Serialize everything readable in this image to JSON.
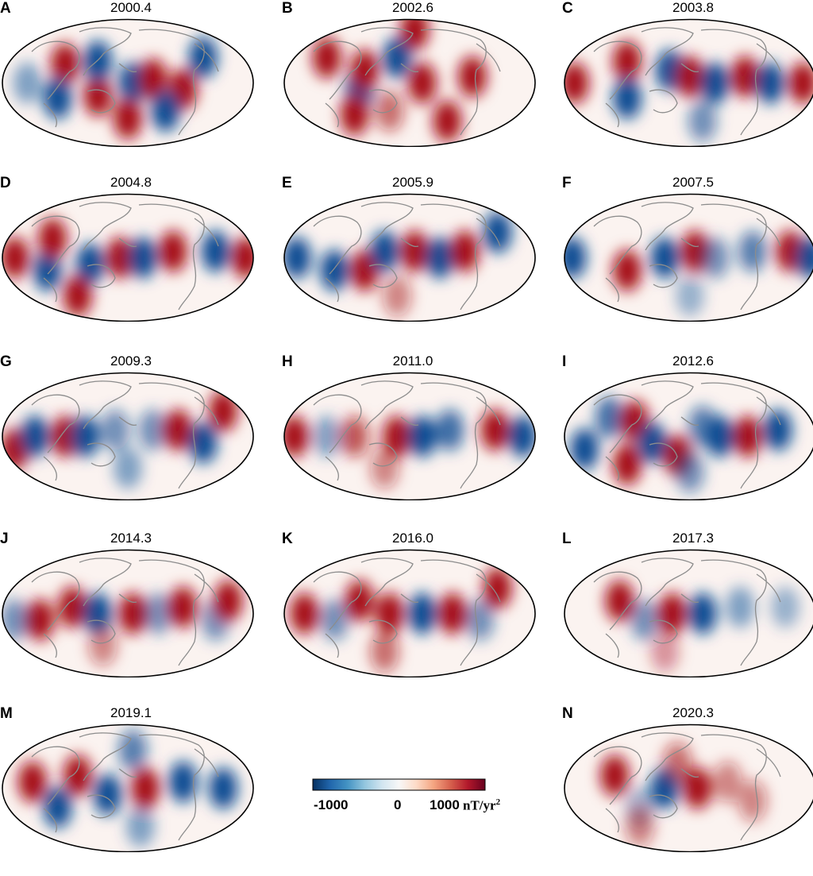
{
  "panels": [
    {
      "letter": "A",
      "year": "2000.4",
      "blobs": [
        [
          0.25,
          0.35,
          1
        ],
        [
          0.22,
          0.62,
          -1
        ],
        [
          0.38,
          0.6,
          1
        ],
        [
          0.38,
          0.33,
          -1
        ],
        [
          0.52,
          0.5,
          -1
        ],
        [
          0.6,
          0.47,
          1
        ],
        [
          0.72,
          0.55,
          1
        ],
        [
          0.5,
          0.78,
          1
        ],
        [
          0.65,
          0.72,
          -1
        ],
        [
          0.8,
          0.3,
          -1
        ],
        [
          0.1,
          0.5,
          -0.5
        ]
      ]
    },
    {
      "letter": "B",
      "year": "2002.6",
      "blobs": [
        [
          0.17,
          0.3,
          1
        ],
        [
          0.3,
          0.55,
          -1
        ],
        [
          0.32,
          0.4,
          1
        ],
        [
          0.45,
          0.3,
          -1
        ],
        [
          0.52,
          0.08,
          1
        ],
        [
          0.55,
          0.5,
          1
        ],
        [
          0.75,
          0.45,
          1
        ],
        [
          0.28,
          0.75,
          1
        ],
        [
          0.65,
          0.8,
          1
        ],
        [
          0.42,
          0.72,
          0.6
        ]
      ]
    },
    {
      "letter": "C",
      "year": "2003.8",
      "blobs": [
        [
          0.25,
          0.33,
          1
        ],
        [
          0.25,
          0.62,
          -1
        ],
        [
          0.42,
          0.4,
          -1
        ],
        [
          0.5,
          0.45,
          1
        ],
        [
          0.6,
          0.5,
          -1
        ],
        [
          0.72,
          0.45,
          1
        ],
        [
          0.82,
          0.5,
          -1
        ],
        [
          0.95,
          0.5,
          1
        ],
        [
          0.04,
          0.5,
          1
        ],
        [
          0.55,
          0.8,
          -0.6
        ]
      ]
    },
    {
      "letter": "D",
      "year": "2004.8",
      "blobs": [
        [
          0.18,
          0.6,
          -1
        ],
        [
          0.2,
          0.35,
          1
        ],
        [
          0.35,
          0.55,
          -1
        ],
        [
          0.47,
          0.5,
          1
        ],
        [
          0.56,
          0.5,
          -1
        ],
        [
          0.68,
          0.45,
          1
        ],
        [
          0.85,
          0.45,
          -1
        ],
        [
          0.97,
          0.5,
          1
        ],
        [
          0.05,
          0.5,
          1
        ],
        [
          0.3,
          0.8,
          1
        ]
      ]
    },
    {
      "letter": "E",
      "year": "2005.9",
      "blobs": [
        [
          0.2,
          0.6,
          -1
        ],
        [
          0.32,
          0.6,
          1
        ],
        [
          0.4,
          0.45,
          -1
        ],
        [
          0.52,
          0.45,
          1
        ],
        [
          0.62,
          0.5,
          -1
        ],
        [
          0.72,
          0.45,
          1
        ],
        [
          0.85,
          0.3,
          -1
        ],
        [
          0.05,
          0.5,
          -1
        ],
        [
          0.45,
          0.8,
          0.5
        ]
      ]
    },
    {
      "letter": "F",
      "year": "2007.5",
      "blobs": [
        [
          0.25,
          0.6,
          1
        ],
        [
          0.4,
          0.5,
          -1
        ],
        [
          0.52,
          0.45,
          1
        ],
        [
          0.6,
          0.5,
          -0.6
        ],
        [
          0.75,
          0.45,
          -0.7
        ],
        [
          0.9,
          0.45,
          1
        ],
        [
          0.98,
          0.5,
          -1
        ],
        [
          0.03,
          0.5,
          -1
        ],
        [
          0.5,
          0.8,
          -0.4
        ]
      ]
    },
    {
      "letter": "G",
      "year": "2009.3",
      "blobs": [
        [
          0.05,
          0.6,
          1
        ],
        [
          0.13,
          0.5,
          -1
        ],
        [
          0.25,
          0.5,
          1
        ],
        [
          0.33,
          0.5,
          -1
        ],
        [
          0.45,
          0.45,
          -0.6
        ],
        [
          0.6,
          0.45,
          -0.6
        ],
        [
          0.7,
          0.45,
          1
        ],
        [
          0.8,
          0.55,
          -1
        ],
        [
          0.88,
          0.3,
          1
        ],
        [
          0.5,
          0.75,
          -0.5
        ]
      ]
    },
    {
      "letter": "H",
      "year": "2011.0",
      "blobs": [
        [
          0.04,
          0.5,
          1
        ],
        [
          0.17,
          0.5,
          -0.5
        ],
        [
          0.28,
          0.5,
          0.7
        ],
        [
          0.45,
          0.5,
          1
        ],
        [
          0.55,
          0.5,
          -1
        ],
        [
          0.66,
          0.45,
          -0.8
        ],
        [
          0.84,
          0.45,
          1
        ],
        [
          0.95,
          0.5,
          -1
        ],
        [
          0.4,
          0.75,
          0.5
        ]
      ]
    },
    {
      "letter": "I",
      "year": "2012.6",
      "blobs": [
        [
          0.08,
          0.6,
          -1
        ],
        [
          0.18,
          0.35,
          -0.8
        ],
        [
          0.28,
          0.38,
          1
        ],
        [
          0.35,
          0.55,
          -1
        ],
        [
          0.45,
          0.65,
          1
        ],
        [
          0.55,
          0.42,
          -0.7
        ],
        [
          0.62,
          0.5,
          -1
        ],
        [
          0.73,
          0.5,
          1
        ],
        [
          0.85,
          0.45,
          -1
        ],
        [
          0.5,
          0.78,
          -0.6
        ],
        [
          0.25,
          0.72,
          1
        ]
      ]
    },
    {
      "letter": "J",
      "year": "2014.3",
      "blobs": [
        [
          0.15,
          0.55,
          1
        ],
        [
          0.28,
          0.45,
          1
        ],
        [
          0.38,
          0.5,
          -1
        ],
        [
          0.52,
          0.5,
          1
        ],
        [
          0.62,
          0.5,
          -0.6
        ],
        [
          0.72,
          0.45,
          1
        ],
        [
          0.85,
          0.55,
          -0.6
        ],
        [
          0.9,
          0.4,
          1
        ],
        [
          0.05,
          0.55,
          -0.6
        ],
        [
          0.4,
          0.75,
          0.5
        ]
      ]
    },
    {
      "letter": "K",
      "year": "2016.0",
      "blobs": [
        [
          0.08,
          0.5,
          1
        ],
        [
          0.2,
          0.55,
          -0.6
        ],
        [
          0.3,
          0.4,
          1
        ],
        [
          0.42,
          0.5,
          1
        ],
        [
          0.55,
          0.5,
          -1
        ],
        [
          0.67,
          0.5,
          1
        ],
        [
          0.85,
          0.3,
          1
        ],
        [
          0.78,
          0.55,
          -0.6
        ],
        [
          0.4,
          0.8,
          0.6
        ]
      ]
    },
    {
      "letter": "L",
      "year": "2017.3",
      "blobs": [
        [
          0.22,
          0.4,
          1
        ],
        [
          0.32,
          0.55,
          -0.6
        ],
        [
          0.43,
          0.5,
          1
        ],
        [
          0.55,
          0.5,
          -1
        ],
        [
          0.7,
          0.45,
          -0.5
        ],
        [
          0.88,
          0.45,
          -0.4
        ],
        [
          0.4,
          0.8,
          0.4
        ]
      ]
    },
    {
      "letter": "M",
      "year": "2019.1",
      "blobs": [
        [
          0.12,
          0.45,
          1
        ],
        [
          0.22,
          0.65,
          -1
        ],
        [
          0.3,
          0.4,
          1
        ],
        [
          0.42,
          0.55,
          -1
        ],
        [
          0.57,
          0.5,
          1
        ],
        [
          0.72,
          0.45,
          -1
        ],
        [
          0.88,
          0.5,
          -1
        ],
        [
          0.52,
          0.2,
          -0.7
        ],
        [
          0.55,
          0.8,
          -0.5
        ]
      ]
    },
    {
      "letter": "N",
      "year": "2020.3",
      "blobs": [
        [
          0.2,
          0.4,
          1
        ],
        [
          0.3,
          0.65,
          -0.4
        ],
        [
          0.4,
          0.5,
          -1
        ],
        [
          0.53,
          0.5,
          1
        ],
        [
          0.45,
          0.3,
          0.6
        ],
        [
          0.65,
          0.45,
          0.5
        ],
        [
          0.75,
          0.6,
          0.5
        ],
        [
          0.3,
          0.8,
          0.5
        ]
      ]
    }
  ],
  "colorbar": {
    "min_label": "-1000",
    "mid_label": "0",
    "max_label": "1000",
    "unit": "nT/yr",
    "unit_exp": "2",
    "stops": [
      "#053061",
      "#2166ac",
      "#4393c3",
      "#92c5de",
      "#d1e5f0",
      "#f7f7f7",
      "#fddbc7",
      "#f4a582",
      "#d6604d",
      "#b2182b",
      "#67001f"
    ]
  },
  "colors": {
    "negative": "#0b4c93",
    "positive": "#a50f15",
    "coast": "#8c8c8c"
  }
}
